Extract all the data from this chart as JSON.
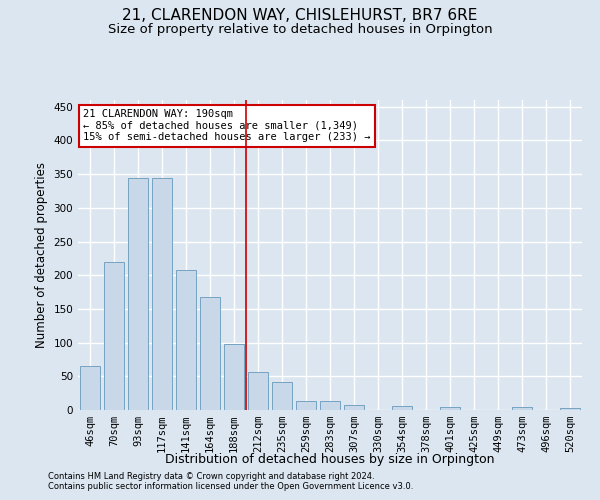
{
  "title": "21, CLARENDON WAY, CHISLEHURST, BR7 6RE",
  "subtitle": "Size of property relative to detached houses in Orpington",
  "xlabel": "Distribution of detached houses by size in Orpington",
  "ylabel": "Number of detached properties",
  "bar_labels": [
    "46sqm",
    "70sqm",
    "93sqm",
    "117sqm",
    "141sqm",
    "164sqm",
    "188sqm",
    "212sqm",
    "235sqm",
    "259sqm",
    "283sqm",
    "307sqm",
    "330sqm",
    "354sqm",
    "378sqm",
    "401sqm",
    "425sqm",
    "449sqm",
    "473sqm",
    "496sqm",
    "520sqm"
  ],
  "bar_values": [
    65,
    220,
    345,
    345,
    208,
    168,
    98,
    57,
    42,
    13,
    13,
    7,
    0,
    6,
    0,
    5,
    0,
    0,
    5,
    0,
    3
  ],
  "bar_color": "#c8d8e8",
  "bar_edge_color": "#6699bb",
  "reference_line_index": 6,
  "annotation_title": "21 CLARENDON WAY: 190sqm",
  "annotation_line1": "← 85% of detached houses are smaller (1,349)",
  "annotation_line2": "15% of semi-detached houses are larger (233) →",
  "annotation_box_color": "#ffffff",
  "annotation_box_edge_color": "#cc0000",
  "vline_color": "#cc0000",
  "ylim": [
    0,
    460
  ],
  "yticks": [
    0,
    50,
    100,
    150,
    200,
    250,
    300,
    350,
    400,
    450
  ],
  "footer_line1": "Contains HM Land Registry data © Crown copyright and database right 2024.",
  "footer_line2": "Contains public sector information licensed under the Open Government Licence v3.0.",
  "background_color": "#dce6f0",
  "grid_color": "#ffffff",
  "title_fontsize": 11,
  "subtitle_fontsize": 9.5,
  "tick_fontsize": 7.5,
  "ylabel_fontsize": 8.5,
  "xlabel_fontsize": 9,
  "footer_fontsize": 6,
  "annotation_fontsize": 7.5
}
